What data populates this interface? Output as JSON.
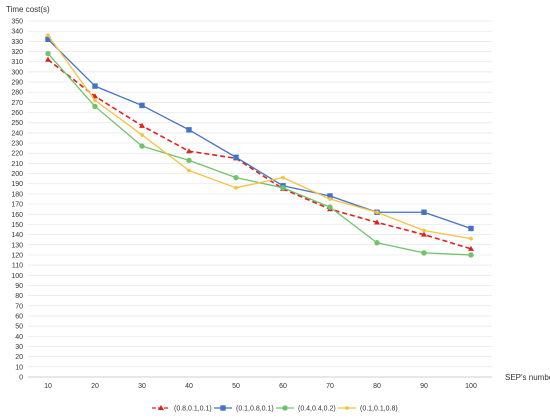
{
  "chart_data": {
    "type": "line",
    "title": "",
    "xlabel": "SEP's number",
    "ylabel": "Time cost(s)",
    "x": [
      10,
      20,
      30,
      40,
      50,
      60,
      70,
      80,
      90,
      100
    ],
    "ylim": [
      0,
      350
    ],
    "ytick_step": 10,
    "grid": "horizontal",
    "legend_position": "bottom",
    "series": [
      {
        "name": "(0.8,0.1,0.1)",
        "color": "#e02020",
        "line_style": "dashed",
        "marker": "triangle",
        "values": [
          312,
          276,
          247,
          222,
          215,
          185,
          165,
          152,
          140,
          126
        ]
      },
      {
        "name": "(0.1,0.8,0.1)",
        "color": "#4472c4",
        "line_style": "solid",
        "marker": "square",
        "values": [
          332,
          286,
          267,
          243,
          216,
          188,
          178,
          162,
          162,
          146
        ]
      },
      {
        "name": "(0.4,0.4,0.2)",
        "color": "#70c36a",
        "line_style": "solid",
        "marker": "circle",
        "values": [
          318,
          266,
          227,
          213,
          196,
          186,
          167,
          132,
          122,
          120
        ]
      },
      {
        "name": "(0.1,0.1,0.8)",
        "color": "#f5c242",
        "line_style": "solid",
        "marker": "dot",
        "values": [
          336,
          272,
          238,
          203,
          186,
          196,
          175,
          162,
          144,
          136
        ]
      }
    ]
  }
}
